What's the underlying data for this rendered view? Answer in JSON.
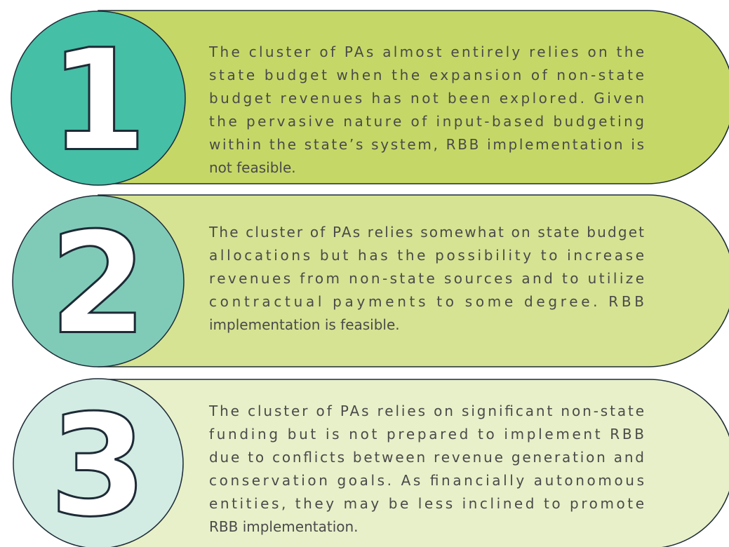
{
  "items": [
    {
      "number": "1",
      "lines": [
        "The cluster of PAs almost entirely relies on the",
        "state budget when the expansion of non-state",
        "budget revenues has not been explored. Given",
        "the pervasive nature of input-based budgeting",
        "within the state’s system, RBB implementation is",
        "not feasible."
      ]
    },
    {
      "number": "2",
      "lines": [
        "The cluster of PAs relies somewhat on state budget",
        "allocations but has the possibility to increase",
        "revenues from non-state sources and to utilize",
        "contractual payments to some degree. RBB",
        "implementation is feasible."
      ]
    },
    {
      "number": "3",
      "lines": [
        "The cluster of PAs relies on significant non-state",
        "funding but is not prepared to implement RBB",
        "due to conflicts between revenue generation and",
        "conservation goals. As financially autonomous",
        "entities, they may be less inclined to promote",
        "RBB implementation."
      ]
    }
  ]
}
